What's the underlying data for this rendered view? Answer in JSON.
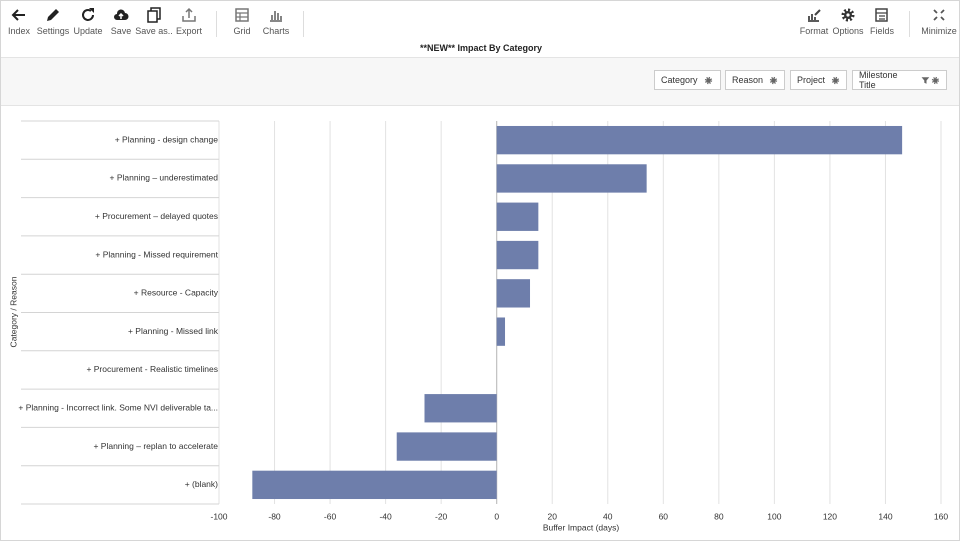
{
  "toolbar": {
    "left": [
      "Index",
      "Settings",
      "Update",
      "Save",
      "Save as..",
      "Export",
      "Grid",
      "Charts"
    ],
    "right": [
      "Format",
      "Options",
      "Fields",
      "Minimize"
    ]
  },
  "report_title": "**NEW** Impact By Category",
  "fields": [
    "Category",
    "Reason",
    "Project",
    "Milestone Title"
  ],
  "chart_data": {
    "type": "bar",
    "orientation": "horizontal",
    "categories": [
      "+ Planning - design change",
      "+ Planning – underestimated",
      "+ Procurement – delayed quotes",
      "+ Planning - Missed requirement",
      "+ Resource - Capacity",
      "+ Planning - Missed link",
      "+ Procurement - Realistic timelines",
      "+ Planning - Incorrect link. Some NVI deliverable ta...",
      "+ Planning – replan to accelerate",
      "+ (blank)"
    ],
    "values": [
      146,
      54,
      15,
      15,
      12,
      3,
      0,
      -26,
      -36,
      -88
    ],
    "color": "#6e7eab",
    "xlim": [
      -100,
      160
    ],
    "xticks": [
      -100,
      -80,
      -60,
      -40,
      -20,
      0,
      20,
      40,
      60,
      80,
      100,
      120,
      140,
      160
    ],
    "x_label": "Buffer Impact (days)",
    "y_label": "Category / Reason",
    "grid": true
  }
}
